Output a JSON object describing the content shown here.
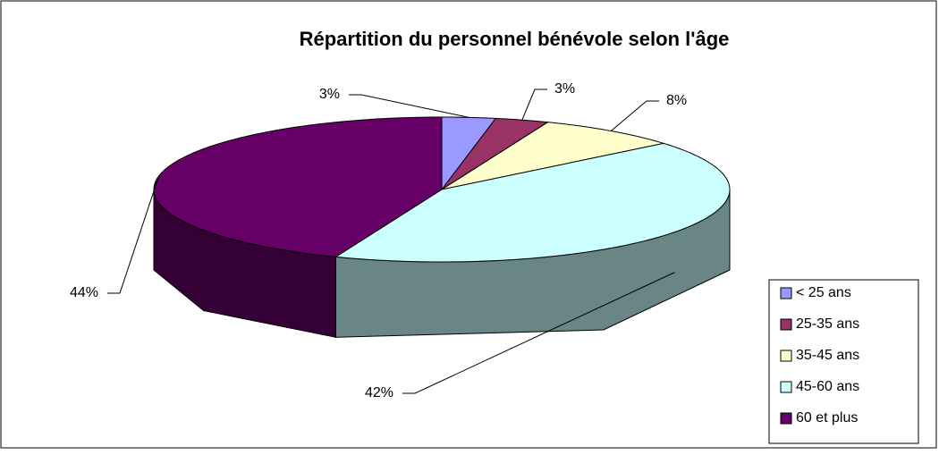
{
  "chart_data": {
    "type": "pie3d",
    "title": "Répartition du personnel bénévole selon l'âge",
    "categories": [
      "< 25 ans",
      "25-35 ans",
      "35-45 ans",
      "45-60 ans",
      "60 et plus"
    ],
    "values": [
      3,
      3,
      8,
      42,
      44
    ],
    "value_labels": [
      "3%",
      "3%",
      "8%",
      "42%",
      "44%"
    ],
    "colors": [
      "#9999ff",
      "#993366",
      "#ffffcc",
      "#ccffff",
      "#660066"
    ],
    "legend": "right"
  }
}
